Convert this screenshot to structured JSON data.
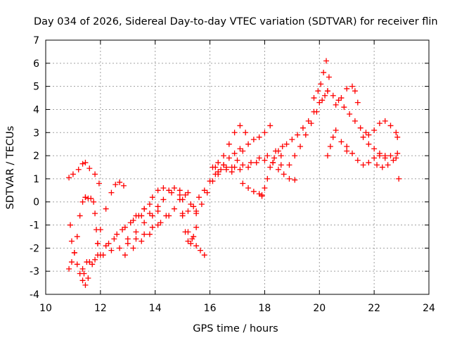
{
  "chart_data": {
    "type": "scatter",
    "title": "Day 034 of 2026, Sidereal Day-to-day VTEC variation (SDTVAR) for receiver flin",
    "xlabel": "GPS time / hours",
    "ylabel": "SDTVAR / TECUs",
    "xlim": [
      10,
      24
    ],
    "ylim": [
      -4,
      7
    ],
    "xticks": [
      "10",
      "12",
      "14",
      "16",
      "18",
      "20",
      "22",
      "24"
    ],
    "yticks": [
      "-4",
      "-3",
      "-2",
      "-1",
      "0",
      "1",
      "2",
      "3",
      "4",
      "5",
      "6",
      "7"
    ],
    "grid": true,
    "marker": "+",
    "color": "#ff0000",
    "series": [
      {
        "name": "track-1",
        "x": [
          10.85,
          11.0,
          11.2,
          11.35,
          11.45,
          11.6,
          11.8,
          11.95
        ],
        "y": [
          1.05,
          1.2,
          1.4,
          1.65,
          1.7,
          1.45,
          1.2,
          0.8
        ]
      },
      {
        "name": "track-2",
        "x": [
          10.9,
          10.95,
          11.05,
          11.15,
          11.25,
          11.35,
          11.45,
          11.55
        ],
        "y": [
          -1.0,
          -1.7,
          -2.2,
          -2.7,
          -3.1,
          -3.4,
          -3.6,
          -3.3
        ]
      },
      {
        "name": "track-3",
        "x": [
          10.85,
          10.95,
          11.05,
          11.15,
          11.25,
          11.35,
          11.45
        ],
        "y": [
          -2.9,
          -2.6,
          -2.2,
          -1.5,
          -0.6,
          0.0,
          0.2
        ]
      },
      {
        "name": "track-4",
        "x": [
          11.45,
          11.55,
          11.65,
          11.75,
          11.8,
          11.85,
          11.9
        ],
        "y": [
          0.2,
          0.15,
          0.15,
          0.0,
          -0.5,
          -1.2,
          -1.8
        ]
      },
      {
        "name": "track-5",
        "x": [
          11.9,
          12.0,
          12.2,
          12.4,
          12.55,
          12.7,
          12.85
        ],
        "y": [
          -1.8,
          -1.2,
          -0.3,
          0.4,
          0.75,
          0.85,
          0.7
        ]
      },
      {
        "name": "track-6",
        "x": [
          11.35,
          11.6,
          11.9,
          12.2,
          12.5,
          12.8,
          13.1,
          13.4,
          13.6,
          13.8
        ],
        "y": [
          -2.9,
          -2.6,
          -2.3,
          -1.9,
          -1.6,
          -1.2,
          -0.9,
          -0.6,
          -0.3,
          -0.1
        ]
      },
      {
        "name": "track-7",
        "x": [
          11.4,
          11.7,
          12.0,
          12.3,
          12.6,
          12.9,
          13.2,
          13.5,
          13.8,
          14.1
        ],
        "y": [
          -3.1,
          -2.7,
          -2.3,
          -1.8,
          -1.4,
          -1.1,
          -0.8,
          -0.6,
          -0.5,
          -0.4
        ]
      },
      {
        "name": "track-8",
        "x": [
          11.5,
          11.8,
          12.1,
          12.4,
          12.7,
          13.0,
          13.3,
          13.6,
          13.9,
          14.2,
          14.5
        ],
        "y": [
          -2.6,
          -2.5,
          -2.3,
          -2.1,
          -2.0,
          -1.8,
          -1.6,
          -1.4,
          -1.1,
          -0.9,
          -0.6
        ]
      },
      {
        "name": "track-9",
        "x": [
          12.9,
          13.2,
          13.5,
          13.8,
          14.1,
          14.4,
          14.7,
          15.0,
          15.2
        ],
        "y": [
          -2.3,
          -2.0,
          -1.7,
          -1.4,
          -1.0,
          -0.6,
          -0.3,
          0.1,
          0.4
        ]
      },
      {
        "name": "track-10",
        "x": [
          13.0,
          13.3,
          13.6,
          13.9,
          14.1,
          14.3,
          14.6,
          14.9,
          15.1,
          15.3,
          15.5
        ],
        "y": [
          -1.6,
          -1.3,
          -0.9,
          -0.6,
          -0.2,
          0.1,
          0.4,
          0.5,
          0.3,
          -0.1,
          -0.5
        ]
      },
      {
        "name": "track-11",
        "x": [
          13.3,
          13.6,
          13.9,
          14.1,
          14.3,
          14.5,
          14.7,
          14.9
        ],
        "y": [
          -0.6,
          -0.3,
          0.2,
          0.5,
          0.6,
          0.5,
          0.6,
          0.3
        ]
      },
      {
        "name": "track-12",
        "x": [
          14.9,
          15.0,
          15.1,
          15.2,
          15.3,
          15.4,
          15.5
        ],
        "y": [
          0.1,
          -0.6,
          -1.3,
          -1.7,
          -1.8,
          -1.5,
          -1.1
        ]
      },
      {
        "name": "track-13",
        "x": [
          15.2,
          15.35,
          15.5,
          15.65,
          15.8
        ],
        "y": [
          -1.3,
          -1.6,
          -1.9,
          -2.1,
          -2.3
        ]
      },
      {
        "name": "track-14",
        "x": [
          15.0,
          15.2,
          15.4,
          15.6,
          15.8,
          16.0,
          16.2,
          16.4,
          16.6
        ],
        "y": [
          -0.5,
          -0.4,
          -0.2,
          0.2,
          0.5,
          0.9,
          1.2,
          1.4,
          1.5
        ]
      },
      {
        "name": "track-15",
        "x": [
          15.5,
          15.7,
          15.9,
          16.1,
          16.3,
          16.5,
          16.7,
          16.9,
          17.1
        ],
        "y": [
          -0.4,
          -0.1,
          0.4,
          0.9,
          1.3,
          1.6,
          1.9,
          2.1,
          2.3
        ]
      },
      {
        "name": "track-16",
        "x": [
          16.1,
          16.3,
          16.5,
          16.7,
          16.9,
          17.1,
          17.3
        ],
        "y": [
          1.5,
          1.7,
          2.0,
          2.5,
          3.0,
          3.3,
          3.0
        ]
      },
      {
        "name": "track-17",
        "x": [
          16.8,
          17.0,
          17.2,
          17.4,
          17.6,
          17.8,
          18.0,
          18.2
        ],
        "y": [
          1.3,
          1.8,
          2.2,
          2.5,
          2.7,
          2.8,
          3.0,
          3.3
        ]
      },
      {
        "name": "track-18",
        "x": [
          16.3,
          16.6,
          16.9,
          17.2,
          17.5,
          17.8,
          18.1,
          18.4
        ],
        "y": [
          1.2,
          1.4,
          1.5,
          1.6,
          1.7,
          1.9,
          2.0,
          2.2
        ]
      },
      {
        "name": "track-19",
        "x": [
          16.2,
          16.5,
          16.8,
          17.1,
          17.4,
          17.7,
          18.0,
          18.3,
          18.6
        ],
        "y": [
          1.5,
          1.6,
          1.5,
          1.4,
          1.5,
          1.7,
          1.8,
          1.7,
          1.6
        ]
      },
      {
        "name": "track-20",
        "x": [
          17.2,
          17.4,
          17.6,
          17.8,
          17.9
        ],
        "y": [
          0.8,
          0.6,
          0.45,
          0.35,
          0.25
        ]
      },
      {
        "name": "track-21",
        "x": [
          17.9,
          18.0,
          18.1,
          18.2,
          18.35,
          18.5,
          18.65
        ],
        "y": [
          0.3,
          0.6,
          1.0,
          1.5,
          1.9,
          2.2,
          2.4
        ]
      },
      {
        "name": "track-22",
        "x": [
          18.3,
          18.5,
          18.7,
          18.9,
          19.1
        ],
        "y": [
          1.7,
          1.4,
          1.2,
          1.0,
          0.95
        ]
      },
      {
        "name": "track-23",
        "x": [
          18.6,
          18.8,
          19.0,
          19.2,
          19.4,
          19.6,
          19.8,
          20.0,
          20.2
        ],
        "y": [
          2.0,
          2.5,
          2.7,
          2.9,
          3.2,
          3.5,
          3.9,
          4.3,
          4.6
        ]
      },
      {
        "name": "track-24",
        "x": [
          18.9,
          19.1,
          19.3,
          19.5,
          19.7,
          19.9,
          20.1,
          20.3
        ],
        "y": [
          1.6,
          2.0,
          2.4,
          2.9,
          3.4,
          3.9,
          4.4,
          4.8
        ]
      },
      {
        "name": "track-25",
        "x": [
          19.8,
          19.95,
          20.05,
          20.15,
          20.25,
          20.35
        ],
        "y": [
          4.5,
          4.8,
          5.1,
          5.6,
          6.1,
          5.4
        ]
      },
      {
        "name": "track-26",
        "x": [
          20.3,
          20.5,
          20.7,
          20.9,
          21.1,
          21.3,
          21.5,
          21.7
        ],
        "y": [
          4.8,
          4.6,
          4.4,
          4.1,
          3.8,
          3.5,
          3.2,
          3.0
        ]
      },
      {
        "name": "track-27",
        "x": [
          20.6,
          20.8,
          21.0,
          21.2,
          21.3,
          21.4
        ],
        "y": [
          4.2,
          4.5,
          4.9,
          5.0,
          4.8,
          4.3
        ]
      },
      {
        "name": "track-28",
        "x": [
          20.3,
          20.4,
          20.5,
          20.6,
          20.8,
          21.0
        ],
        "y": [
          2.0,
          2.4,
          2.8,
          3.1,
          2.6,
          2.2
        ]
      },
      {
        "name": "track-29",
        "x": [
          21.0,
          21.2,
          21.4,
          21.6,
          21.8,
          22.0,
          22.2,
          22.4
        ],
        "y": [
          2.4,
          2.1,
          1.8,
          1.6,
          1.7,
          1.9,
          2.0,
          1.9
        ]
      },
      {
        "name": "track-30",
        "x": [
          21.6,
          21.8,
          22.0,
          22.2,
          22.4,
          22.6,
          22.8
        ],
        "y": [
          2.8,
          2.5,
          2.3,
          2.1,
          2.0,
          2.0,
          1.9
        ]
      },
      {
        "name": "track-31",
        "x": [
          21.8,
          22.0,
          22.2,
          22.4,
          22.6,
          22.8,
          22.85
        ],
        "y": [
          2.9,
          3.1,
          3.4,
          3.5,
          3.3,
          3.0,
          2.8
        ]
      },
      {
        "name": "track-32",
        "x": [
          22.1,
          22.3,
          22.5,
          22.7,
          22.85
        ],
        "y": [
          1.6,
          1.5,
          1.6,
          1.8,
          2.1
        ]
      },
      {
        "name": "track-33",
        "x": [
          22.9
        ],
        "y": [
          1.0
        ]
      }
    ]
  }
}
